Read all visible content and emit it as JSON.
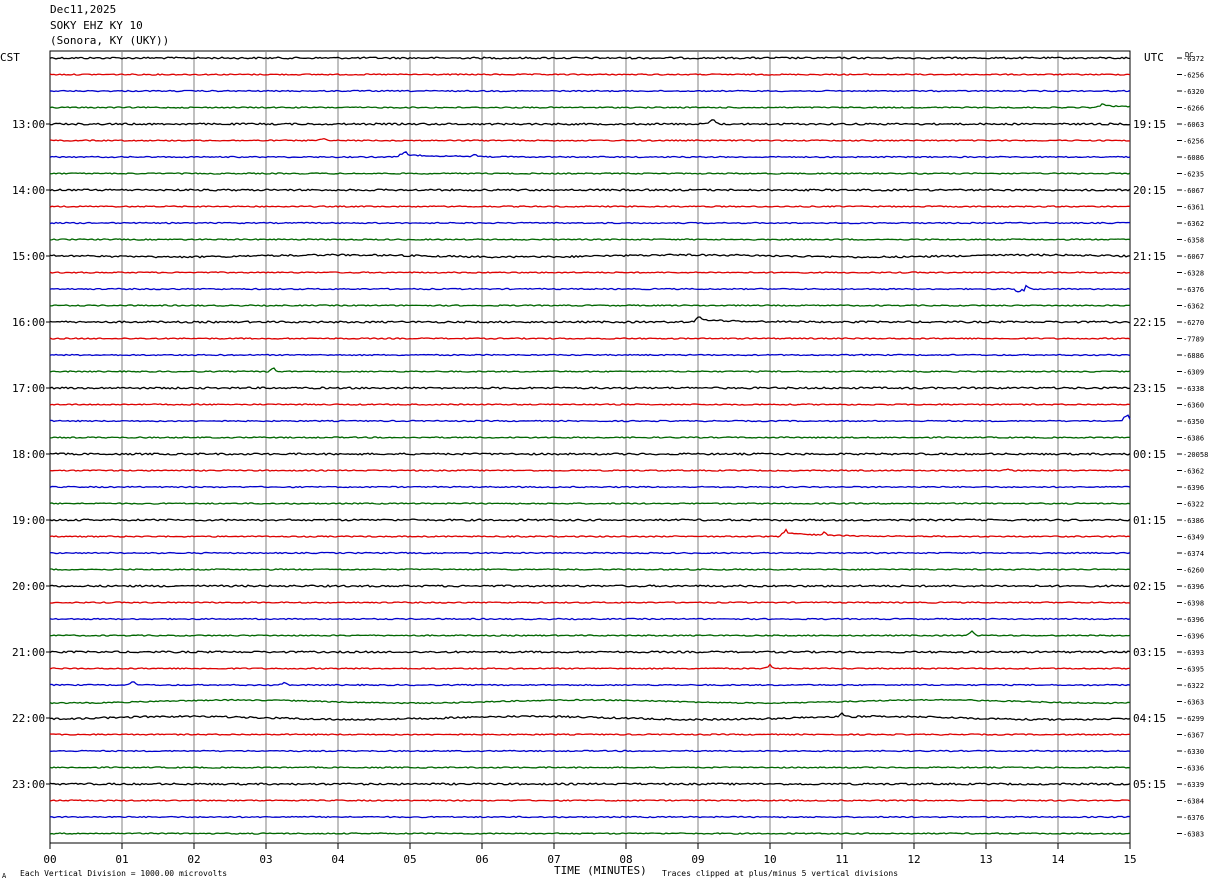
{
  "header": {
    "date": "Dec11,2025",
    "station": "SOKY EHZ KY 10",
    "location": "(Sonora, KY (UKY))"
  },
  "left_zone": "CST",
  "right_zone": "UTC",
  "dc_label": "DC",
  "footer": {
    "scale_note": "Each Vertical Division = 1000.00 microvolts",
    "xlabel": "TIME (MINUTES)",
    "clip_note": "Traces clipped at plus/minus 5 vertical divisions",
    "corner_mark": "A"
  },
  "colors": {
    "black": "#000000",
    "red": "#dd0000",
    "blue": "#0000cc",
    "green": "#006600",
    "grid": "#808080"
  },
  "chart_data": {
    "type": "line",
    "title": "SOKY EHZ KY 10",
    "xlabel": "TIME (MINUTES)",
    "xlim": [
      0,
      15
    ],
    "x_ticks": [
      "00",
      "01",
      "02",
      "03",
      "04",
      "05",
      "06",
      "07",
      "08",
      "09",
      "10",
      "11",
      "12",
      "13",
      "14",
      "15"
    ],
    "trace_color_cycle": [
      "black",
      "red",
      "blue",
      "green"
    ],
    "left_hour_labels": [
      "13:00",
      "14:00",
      "15:00",
      "16:00",
      "17:00",
      "18:00",
      "19:00",
      "20:00",
      "21:00",
      "22:00",
      "23:00"
    ],
    "right_hour_labels": [
      "19:15",
      "20:15",
      "21:15",
      "22:15",
      "23:15",
      "00:15",
      "01:15",
      "02:15",
      "03:15",
      "04:15",
      "05:15"
    ],
    "hour_label_first_trace": 4,
    "dc_offsets": [
      "-6372",
      "-6256",
      "-6320",
      "-6266",
      "-6063",
      "-6256",
      "-6086",
      "-6235",
      "-6067",
      "-6361",
      "-6362",
      "-6358",
      "-6067",
      "-6328",
      "-6376",
      "-6362",
      "-6270",
      "-7789",
      "-6886",
      "-6309",
      "-6338",
      "-6360",
      "-6350",
      "-6386",
      "-20058",
      "-6362",
      "-6396",
      "-6322",
      "-6386",
      "-6349",
      "-6374",
      "-6260",
      "-6396",
      "-6398",
      "-6396",
      "-6396",
      "-6393",
      "-6395",
      "-6322",
      "-6363",
      "-6299",
      "-6367",
      "-6330",
      "-6336",
      "-6339",
      "-6384",
      "-6376",
      "-6383"
    ],
    "events": [
      {
        "trace": 3,
        "minute": 14.6,
        "kind": "step",
        "amp": -3
      },
      {
        "trace": 4,
        "minute": 9.2,
        "kind": "spike",
        "amp": -6
      },
      {
        "trace": 5,
        "minute": 3.8,
        "kind": "spike",
        "amp": -3
      },
      {
        "trace": 6,
        "minute": 4.9,
        "kind": "step",
        "amp": -4
      },
      {
        "trace": 6,
        "minute": 5.9,
        "kind": "spike",
        "amp": -3
      },
      {
        "trace": 12,
        "minute": 9.6,
        "kind": "wander",
        "amp": 2
      },
      {
        "trace": 14,
        "minute": 13.5,
        "kind": "burst",
        "amp": 6
      },
      {
        "trace": 16,
        "minute": 9.0,
        "kind": "step",
        "amp": -4
      },
      {
        "trace": 19,
        "minute": 3.1,
        "kind": "spike",
        "amp": -4
      },
      {
        "trace": 22,
        "minute": 14.95,
        "kind": "spike",
        "amp": -8
      },
      {
        "trace": 25,
        "minute": 13.3,
        "kind": "spike",
        "amp": -2
      },
      {
        "trace": 29,
        "minute": 10.2,
        "kind": "step",
        "amp": -6
      },
      {
        "trace": 29,
        "minute": 10.75,
        "kind": "spike",
        "amp": -3
      },
      {
        "trace": 35,
        "minute": 12.8,
        "kind": "spike",
        "amp": -5
      },
      {
        "trace": 37,
        "minute": 10.0,
        "kind": "spike",
        "amp": -5
      },
      {
        "trace": 38,
        "minute": 1.15,
        "kind": "spike",
        "amp": -5
      },
      {
        "trace": 38,
        "minute": 3.25,
        "kind": "spike",
        "amp": -3
      },
      {
        "trace": 39,
        "minute": 8.0,
        "kind": "wander",
        "amp": 3
      },
      {
        "trace": 40,
        "minute": 9.7,
        "kind": "wander",
        "amp": 3
      },
      {
        "trace": 40,
        "minute": 11.0,
        "kind": "spike",
        "amp": -4
      }
    ]
  }
}
